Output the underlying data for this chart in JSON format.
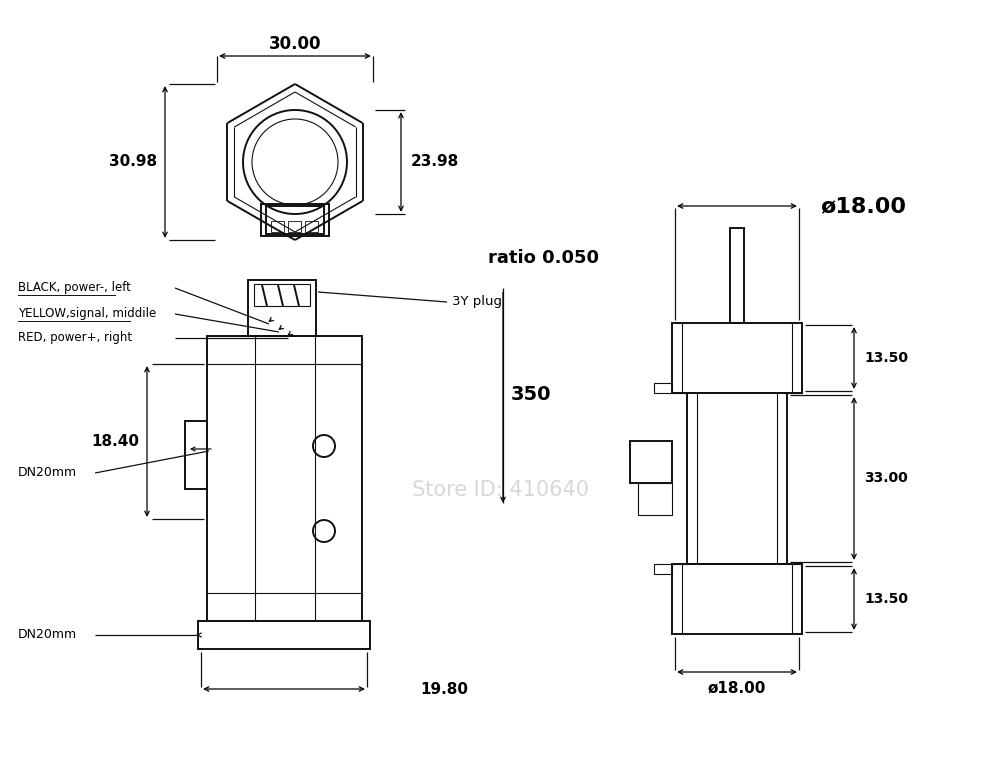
{
  "bg_color": "#ffffff",
  "line_color": "#111111",
  "dim_color": "#000000",
  "watermark_color": "#c8c8c8",
  "watermark_text": "Store ID: 410640",
  "annotations": {
    "dim_30": "30.00",
    "dim_2398": "23.98",
    "dim_3098": "30.98",
    "ratio": "ratio 0.050",
    "dim_1980": "19.80",
    "dim_1840": "18.40",
    "dim_350": "350",
    "dim_phi18_top": "ø18.00",
    "dim_1350_top": "13.50",
    "dim_3300": "33.00",
    "dim_1350_bot": "13.50",
    "dim_phi18_bot": "ø18.00",
    "label_3yplug": "3Y plug",
    "label_black": "BLACK, power-, left",
    "label_yellow": "YELLOW,signal, middile",
    "label_red": "RED, power+, right",
    "label_dn20_top": "DN20mm",
    "label_dn20_bot": "DN20mm"
  }
}
